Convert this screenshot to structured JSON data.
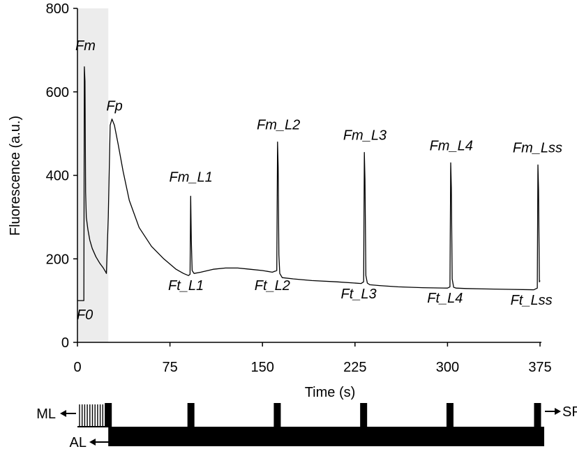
{
  "chart_data": {
    "type": "line",
    "title": "",
    "xlabel": "Time (s)",
    "ylabel": "Fluorescence (a.u.)",
    "xlim": [
      0,
      375
    ],
    "ylim": [
      0,
      800
    ],
    "x_ticks": [
      0,
      75,
      150,
      225,
      300,
      375
    ],
    "x_tick_labels": [
      "0",
      "75",
      "150",
      "225",
      "300",
      "375"
    ],
    "y_ticks": [
      0,
      200,
      400,
      600,
      800
    ],
    "y_tick_labels": [
      "0",
      "200",
      "400",
      "600",
      "800"
    ],
    "grid": false,
    "shaded_region": {
      "x_start": 0,
      "x_end": 25
    },
    "series": [
      {
        "x": [
          0,
          0.01,
          3.5,
          4.5,
          5.2,
          5.6,
          6.1,
          6.6,
          7.2,
          8.5,
          10,
          12,
          15,
          18,
          21,
          23,
          23.5,
          25,
          26.5,
          28,
          30,
          33,
          37,
          42,
          50,
          60,
          70,
          80,
          86,
          90,
          91.3,
          91.8,
          92.3,
          93,
          94.5,
          100,
          110,
          120,
          130,
          140,
          150,
          158,
          161.6,
          162.2,
          162.7,
          163.3,
          164,
          166,
          175,
          190,
          210,
          230,
          232,
          232.6,
          233.1,
          233.8,
          235,
          237,
          245,
          260,
          280,
          300,
          302,
          302.6,
          303.1,
          303.8,
          305,
          307,
          315,
          330,
          350,
          370,
          372.8,
          373.3,
          373.8,
          374.5,
          375
        ],
        "y": [
          100,
          100,
          100,
          100,
          100,
          660,
          625,
          360,
          300,
          270,
          245,
          225,
          205,
          190,
          178,
          168,
          165,
          300,
          520,
          535,
          520,
          475,
          410,
          340,
          275,
          230,
          200,
          175,
          165,
          160,
          163,
          350,
          245,
          172,
          165,
          168,
          175,
          178,
          178,
          175,
          172,
          168,
          172,
          480,
          420,
          210,
          165,
          155,
          152,
          148,
          145,
          141,
          145,
          455,
          390,
          160,
          142,
          138,
          136,
          133,
          131,
          130,
          133,
          430,
          370,
          152,
          132,
          130,
          129,
          128,
          127,
          126,
          130,
          425,
          365,
          145,
          148
        ]
      }
    ],
    "annotations": [
      {
        "text": "Fm",
        "x": 6.5,
        "y": 700
      },
      {
        "text": "Fp",
        "x": 30,
        "y": 555
      },
      {
        "text": "F0",
        "x": 6,
        "y": 55
      },
      {
        "text": "Fm_L1",
        "x": 92,
        "y": 385
      },
      {
        "text": "Fm_L2",
        "x": 163,
        "y": 510
      },
      {
        "text": "Fm_L3",
        "x": 233,
        "y": 485
      },
      {
        "text": "Fm_L4",
        "x": 303,
        "y": 460
      },
      {
        "text": "Fm_Lss",
        "x": 373,
        "y": 455
      },
      {
        "text": "Ft_L1",
        "x": 88,
        "y": 125
      },
      {
        "text": "Ft_L2",
        "x": 158,
        "y": 125
      },
      {
        "text": "Ft_L3",
        "x": 228,
        "y": 105
      },
      {
        "text": "Ft_L4",
        "x": 298,
        "y": 95
      },
      {
        "text": "Ft_Lss",
        "x": 368,
        "y": 90
      }
    ],
    "protocol": {
      "ml_label": "ML",
      "al_label": "AL",
      "sp_label": "SP",
      "ml_pulse_window": [
        0,
        25
      ],
      "al_on_from": 25,
      "saturating_pulses": [
        25,
        92,
        162,
        232,
        302,
        373
      ]
    }
  }
}
